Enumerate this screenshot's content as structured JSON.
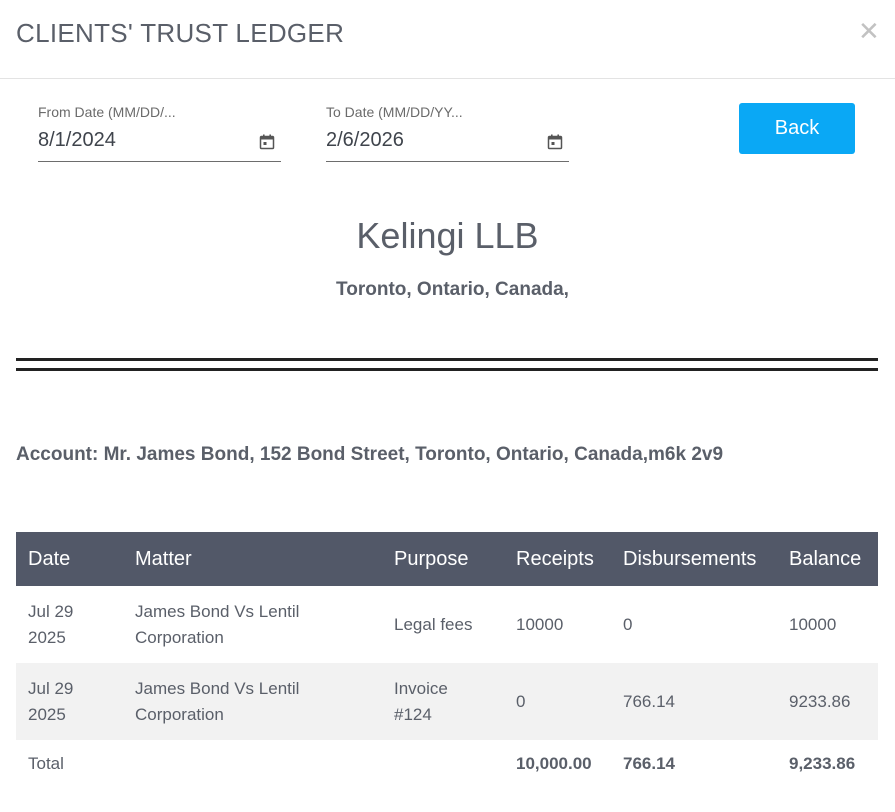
{
  "dialog": {
    "title": "CLIENTS' TRUST LEDGER",
    "close_icon": "close-icon",
    "close_glyph": "✕"
  },
  "filters": {
    "from_label": "From Date (MM/DD/...",
    "from_value": "8/1/2024",
    "to_label": "To Date (MM/DD/YY...",
    "to_value": "2/6/2026",
    "calendar_icon": "calendar-icon"
  },
  "back_label": "Back",
  "firm": {
    "name": "Kelingi LLB",
    "address": "Toronto, Ontario, Canada,"
  },
  "account_line": "Account: Mr. James Bond, 152 Bond Street, Toronto, Ontario, Canada,m6k 2v9",
  "colors": {
    "header_bg": "#525868",
    "back_button": "#0aa8f5",
    "alt_row": "#f2f2f2"
  },
  "table": {
    "headers": [
      "Date",
      "Matter",
      "Purpose",
      "Receipts",
      "Disbursements",
      "Balance"
    ],
    "rows": [
      {
        "date_line1": "Jul 29",
        "date_line2": "2025",
        "matter_line1": "James Bond Vs Lentil",
        "matter_line2": "Corporation",
        "purpose_line1": "Legal fees",
        "purpose_line2": "",
        "receipts": "10000",
        "disbursements": "0",
        "balance": "10000"
      },
      {
        "date_line1": "Jul 29",
        "date_line2": "2025",
        "matter_line1": "James Bond Vs Lentil",
        "matter_line2": "Corporation",
        "purpose_line1": "Invoice",
        "purpose_line2": "#124",
        "receipts": "0",
        "disbursements": "766.14",
        "balance": "9233.86"
      }
    ],
    "total": {
      "label": "Total",
      "receipts": "10,000.00",
      "disbursements": "766.14",
      "balance": "9,233.86"
    }
  }
}
